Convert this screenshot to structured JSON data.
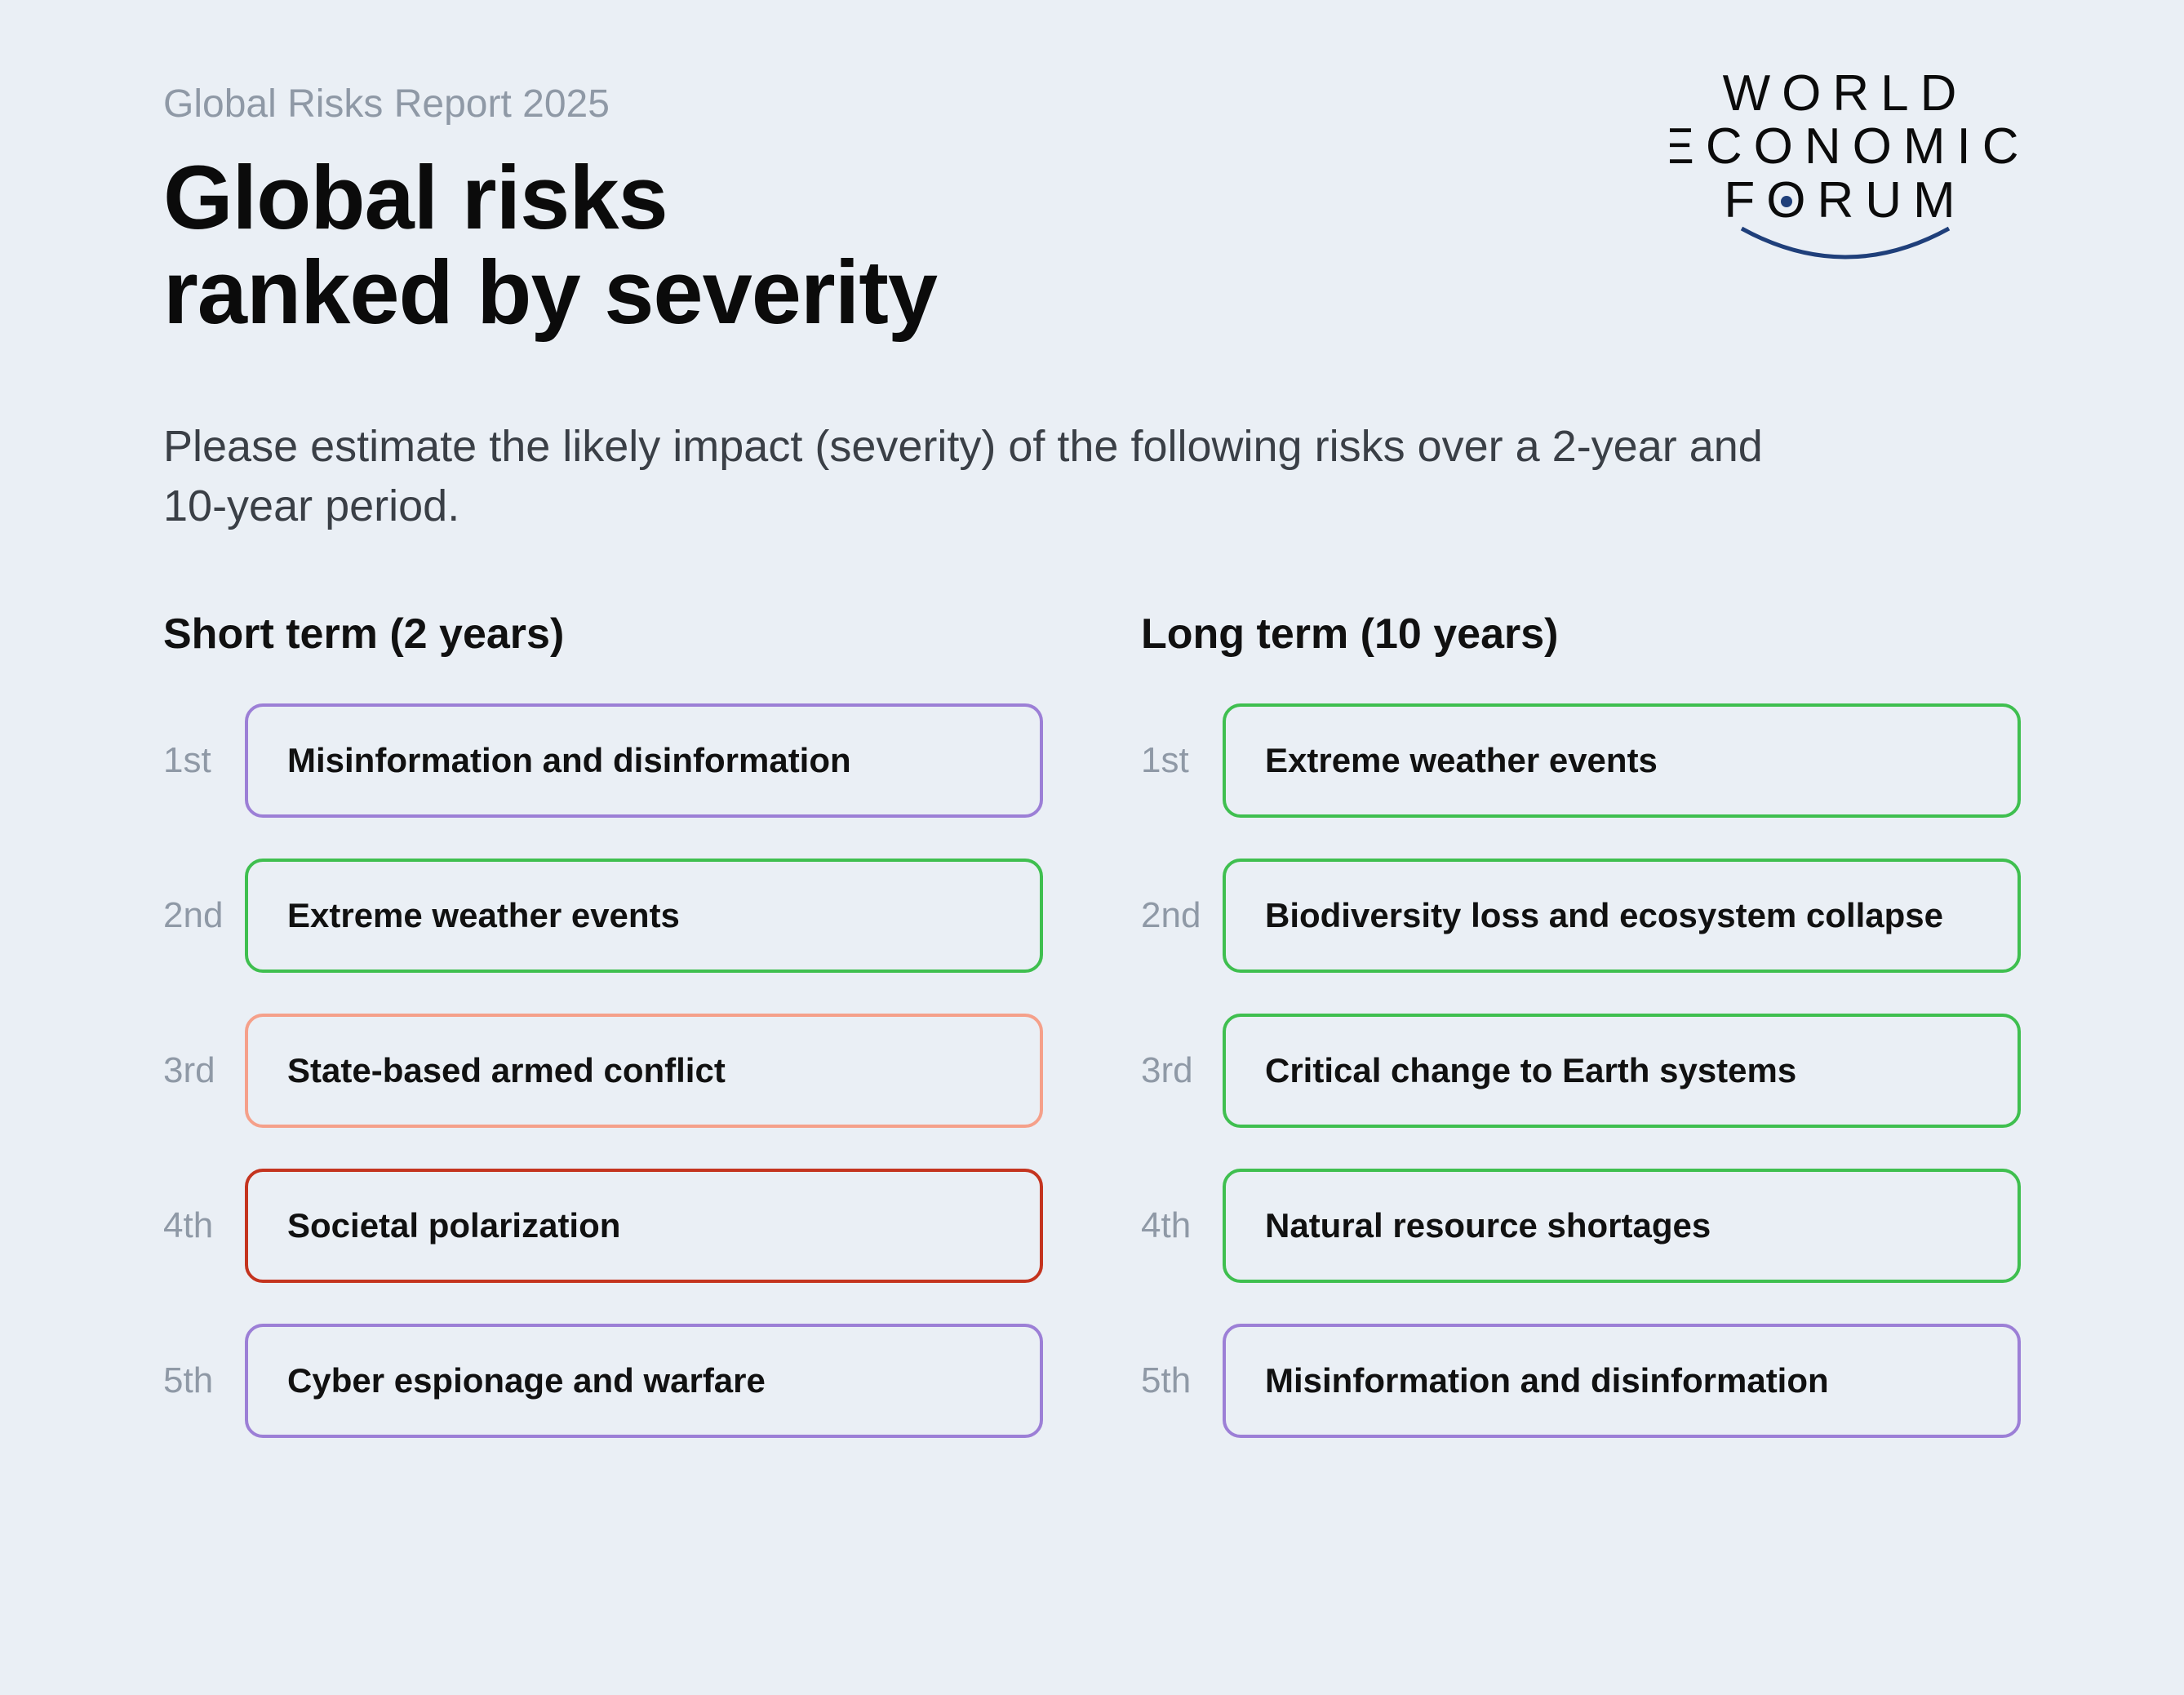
{
  "background_color": "#eaeff5",
  "header": {
    "supertitle": "Global Risks Report 2025",
    "title_line1": "Global risks",
    "title_line2": "ranked by severity",
    "subtitle": "Please estimate the likely impact (severity) of the following risks over a 2-year and 10-year period.",
    "logo_line1": "WORLD",
    "logo_line2": "ECONOMIC",
    "logo_line3": "FORUM",
    "logo_text_color": "#0b0b0b",
    "logo_arc_color": "#1f3f7a"
  },
  "colors": {
    "supertitle": "#8f99a6",
    "title": "#0b0b0b",
    "subtitle": "#3a3f46",
    "rank": "#8f99a6",
    "box_text": "#111111"
  },
  "typography": {
    "supertitle_fontsize": 48,
    "title_fontsize": 110,
    "subtitle_fontsize": 54,
    "col_title_fontsize": 52,
    "rank_fontsize": 44,
    "box_label_fontsize": 42,
    "box_label_weight": 600,
    "title_weight": 700
  },
  "layout": {
    "box_border_radius": 22,
    "box_border_width": 4,
    "box_padding_v": 42,
    "box_padding_h": 48,
    "column_gap": 120,
    "row_gap": 50
  },
  "columns": {
    "short": {
      "title": "Short term (2 years)",
      "items": [
        {
          "rank": "1st",
          "label": "Misinformation and disinformation",
          "border_color": "#9c7fd6"
        },
        {
          "rank": "2nd",
          "label": "Extreme weather events",
          "border_color": "#3fbf4f"
        },
        {
          "rank": "3rd",
          "label": "State-based armed conflict",
          "border_color": "#f5a08a"
        },
        {
          "rank": "4th",
          "label": "Societal polarization",
          "border_color": "#c4341f"
        },
        {
          "rank": "5th",
          "label": "Cyber espionage and warfare",
          "border_color": "#9c7fd6"
        }
      ]
    },
    "long": {
      "title": "Long term (10 years)",
      "items": [
        {
          "rank": "1st",
          "label": "Extreme weather events",
          "border_color": "#3fbf4f"
        },
        {
          "rank": "2nd",
          "label": "Biodiversity loss and ecosystem collapse",
          "border_color": "#3fbf4f"
        },
        {
          "rank": "3rd",
          "label": "Critical change to Earth systems",
          "border_color": "#3fbf4f"
        },
        {
          "rank": "4th",
          "label": "Natural resource shortages",
          "border_color": "#3fbf4f"
        },
        {
          "rank": "5th",
          "label": "Misinformation and disinformation",
          "border_color": "#9c7fd6"
        }
      ]
    }
  }
}
